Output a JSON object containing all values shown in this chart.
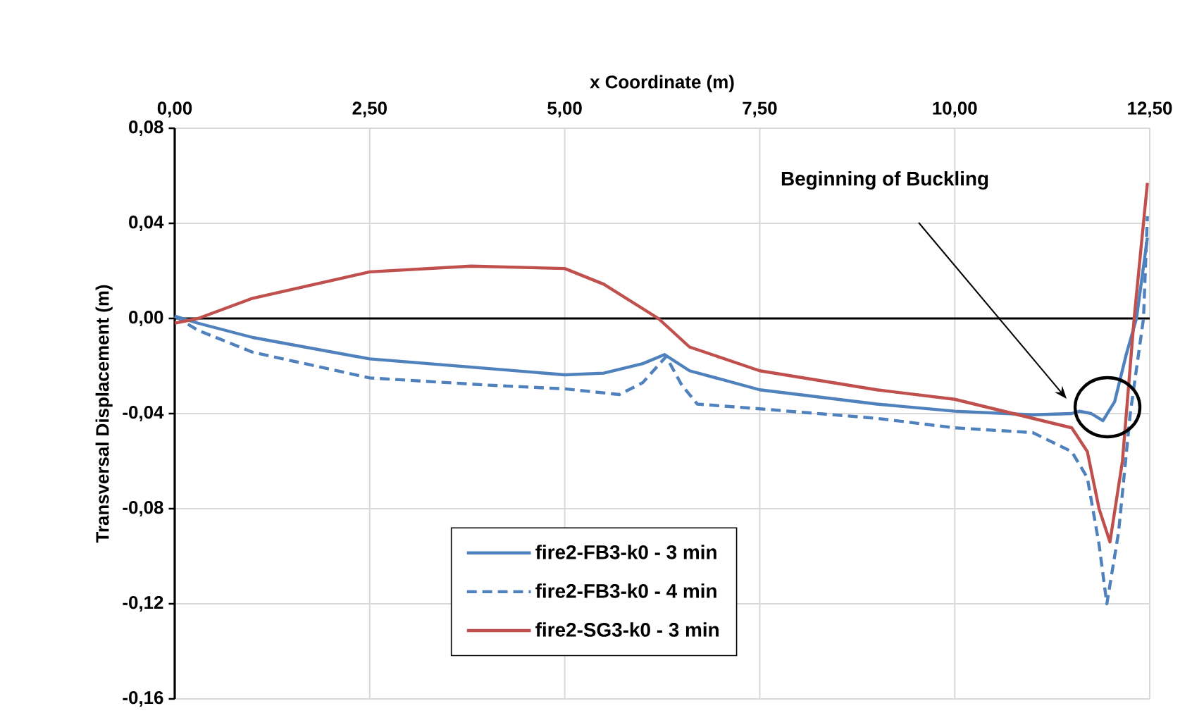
{
  "chart_data": {
    "type": "line",
    "xlabel": "x Coordinate (m)",
    "ylabel": "Transversal Displacement (m)",
    "xlim": [
      0,
      12.5
    ],
    "ylim": [
      -0.16,
      0.08
    ],
    "xticks": [
      {
        "value": 0,
        "label": "0,00"
      },
      {
        "value": 2.5,
        "label": "2,50"
      },
      {
        "value": 5,
        "label": "5,00"
      },
      {
        "value": 7.5,
        "label": "7,50"
      },
      {
        "value": 10,
        "label": "10,00"
      },
      {
        "value": 12.5,
        "label": "12,50"
      }
    ],
    "yticks": [
      {
        "value": -0.16,
        "label": "-0,16"
      },
      {
        "value": -0.12,
        "label": "-0,12"
      },
      {
        "value": -0.08,
        "label": "-0,08"
      },
      {
        "value": -0.04,
        "label": "-0,04"
      },
      {
        "value": 0,
        "label": "0,00"
      },
      {
        "value": 0.04,
        "label": "0,04"
      },
      {
        "value": 0.08,
        "label": "0,08"
      }
    ],
    "grid": true,
    "legend": "bottom",
    "marker": "none",
    "annotations": [
      "Beginning of Buckling"
    ],
    "series": [
      {
        "name": "fire2-FB3-k0 - 3 min",
        "color": "#4f81bd",
        "line_style": "solid",
        "x": [
          0,
          0.3,
          1,
          2.5,
          4,
          5,
          5.5,
          6,
          6.28,
          6.6,
          7.5,
          9,
          10,
          11,
          11.5,
          11.6,
          11.75,
          11.9,
          12.05,
          12.2,
          12.33,
          12.47
        ],
        "values": [
          0.001,
          -0.002,
          -0.008,
          -0.017,
          -0.021,
          -0.0237,
          -0.023,
          -0.019,
          -0.0152,
          -0.022,
          -0.03,
          -0.036,
          -0.039,
          -0.0405,
          -0.04,
          -0.039,
          -0.04,
          -0.043,
          -0.035,
          -0.015,
          0.0,
          0.034
        ]
      },
      {
        "name": "fire2-FB3-k0 - 4 min",
        "color": "#4f81bd",
        "line_style": "dashed",
        "x": [
          0,
          0.3,
          1,
          2.5,
          4,
          5,
          5.7,
          6.0,
          6.3,
          6.5,
          6.7,
          7.5,
          9,
          10,
          11,
          11.5,
          11.7,
          11.85,
          11.95,
          12.1,
          12.25,
          12.42,
          12.47
        ],
        "values": [
          0.001,
          -0.005,
          -0.0142,
          -0.025,
          -0.028,
          -0.0296,
          -0.032,
          -0.027,
          -0.016,
          -0.028,
          -0.036,
          -0.038,
          -0.042,
          -0.046,
          -0.048,
          -0.056,
          -0.067,
          -0.095,
          -0.12,
          -0.09,
          -0.04,
          0.0,
          0.043
        ]
      },
      {
        "name": "fire2-SG3-k0 - 3 min",
        "color": "#c0504d",
        "line_style": "solid",
        "x": [
          0,
          0.3,
          1,
          2.5,
          3.8,
          5,
          5.5,
          6.2,
          6.6,
          7.5,
          9,
          10,
          11,
          11.5,
          11.7,
          11.85,
          11.99,
          12.15,
          12.3,
          12.47
        ],
        "values": [
          -0.002,
          0.0,
          0.0085,
          0.0196,
          0.022,
          0.021,
          0.0144,
          0.0,
          -0.012,
          -0.022,
          -0.03,
          -0.034,
          -0.042,
          -0.046,
          -0.056,
          -0.08,
          -0.094,
          -0.06,
          0.0,
          0.057
        ]
      }
    ]
  }
}
